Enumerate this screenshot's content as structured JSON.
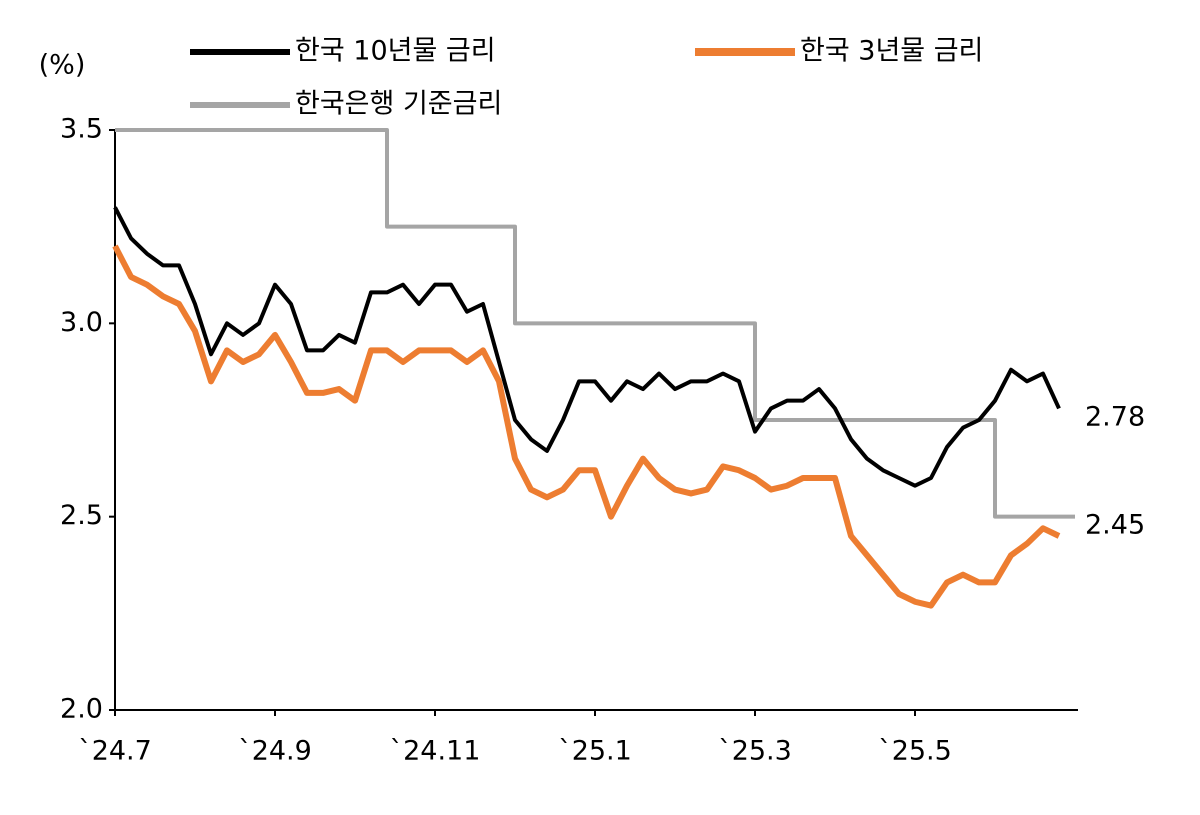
{
  "chart_data": {
    "type": "line",
    "y_label": "(%)",
    "categories": [
      "`24.7",
      null,
      null,
      null,
      null,
      null,
      null,
      null,
      null,
      null,
      "`24.9",
      null,
      null,
      null,
      null,
      null,
      null,
      null,
      null,
      null,
      "`24.11",
      null,
      null,
      null,
      null,
      null,
      null,
      null,
      null,
      null,
      "`25.1",
      null,
      null,
      null,
      null,
      null,
      null,
      null,
      null,
      null,
      "`25.3",
      null,
      null,
      null,
      null,
      null,
      null,
      null,
      null,
      null,
      "`25.5",
      null,
      null,
      null,
      null,
      null,
      null,
      null,
      null,
      null
    ],
    "series": [
      {
        "name": "한국 10년물 금리",
        "color": "#000000",
        "values": [
          3.3,
          3.22,
          3.18,
          3.15,
          3.15,
          3.05,
          2.92,
          3.0,
          2.97,
          3.0,
          3.1,
          3.05,
          2.93,
          2.93,
          2.97,
          2.95,
          3.08,
          3.08,
          3.1,
          3.05,
          3.1,
          3.1,
          3.03,
          3.05,
          2.9,
          2.75,
          2.7,
          2.67,
          2.75,
          2.85,
          2.85,
          2.8,
          2.85,
          2.83,
          2.87,
          2.83,
          2.85,
          2.85,
          2.87,
          2.85,
          2.72,
          2.78,
          2.8,
          2.8,
          2.83,
          2.78,
          2.7,
          2.65,
          2.62,
          2.6,
          2.58,
          2.6,
          2.68,
          2.73,
          2.75,
          2.8,
          2.88,
          2.85,
          2.87,
          2.78
        ]
      },
      {
        "name": "한국 3년물 금리",
        "color": "#ed7d31",
        "values": [
          3.2,
          3.12,
          3.1,
          3.07,
          3.05,
          2.98,
          2.85,
          2.93,
          2.9,
          2.92,
          2.97,
          2.9,
          2.82,
          2.82,
          2.83,
          2.8,
          2.93,
          2.93,
          2.9,
          2.93,
          2.93,
          2.93,
          2.9,
          2.93,
          2.85,
          2.65,
          2.57,
          2.55,
          2.57,
          2.62,
          2.62,
          2.5,
          2.58,
          2.65,
          2.6,
          2.57,
          2.56,
          2.57,
          2.63,
          2.62,
          2.6,
          2.57,
          2.58,
          2.6,
          2.6,
          2.6,
          2.45,
          2.4,
          2.35,
          2.3,
          2.28,
          2.27,
          2.33,
          2.35,
          2.33,
          2.33,
          2.4,
          2.43,
          2.47,
          2.45
        ]
      },
      {
        "name": "한국은행 기준금리",
        "color": "#a5a5a5",
        "step": true,
        "values": [
          3.5,
          3.5,
          3.5,
          3.5,
          3.5,
          3.5,
          3.5,
          3.5,
          3.5,
          3.5,
          3.5,
          3.5,
          3.5,
          3.5,
          3.5,
          3.5,
          3.5,
          3.25,
          3.25,
          3.25,
          3.25,
          3.25,
          3.25,
          3.25,
          3.25,
          3.0,
          3.0,
          3.0,
          3.0,
          3.0,
          3.0,
          3.0,
          3.0,
          3.0,
          3.0,
          3.0,
          3.0,
          3.0,
          3.0,
          3.0,
          2.75,
          2.75,
          2.75,
          2.75,
          2.75,
          2.75,
          2.75,
          2.75,
          2.75,
          2.75,
          2.75,
          2.75,
          2.75,
          2.75,
          2.75,
          2.5,
          2.5,
          2.5,
          2.5,
          2.5
        ]
      }
    ],
    "annotations": [
      "2.78",
      "2.45"
    ],
    "ylim": [
      2.0,
      3.5
    ],
    "yticks": [
      {
        "value": 2.0,
        "label": "2.0"
      },
      2.5,
      {
        "value": 3.0,
        "label": "3.0"
      },
      3.5
    ]
  }
}
